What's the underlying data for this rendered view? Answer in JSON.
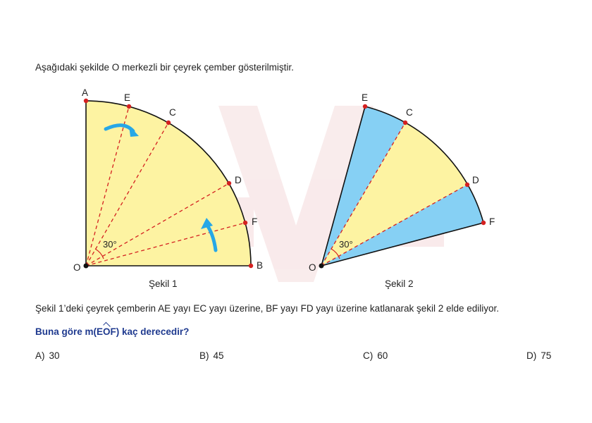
{
  "intro": "Aşağıdaki şekilde O merkezli bir çeyrek çember gösterilmiştir.",
  "figure1": {
    "caption": "Şekil 1",
    "labels": {
      "A": "A",
      "E": "E",
      "C": "C",
      "D": "D",
      "F": "F",
      "B": "B",
      "O": "O"
    },
    "angle_label": "30°"
  },
  "figure2": {
    "caption": "Şekil 2",
    "labels": {
      "E": "E",
      "C": "C",
      "D": "D",
      "F": "F",
      "O": "O"
    },
    "angle_label": "30°"
  },
  "description": "Şekil 1’deki çeyrek çemberin AE yayı EC yayı üzerine, BF yayı FD yayı üzerine katlanarak şekil 2 elde ediliyor.",
  "question": {
    "prefix": "Buna göre m(",
    "arc": "EOF",
    "suffix": ") kaç derecedir?"
  },
  "options": [
    {
      "letter": "A)",
      "value": "30"
    },
    {
      "letter": "B)",
      "value": "45"
    },
    {
      "letter": "C)",
      "value": "60"
    },
    {
      "letter": "D)",
      "value": "75"
    }
  ],
  "colors": {
    "sector_fill": "#fdf3a2",
    "folded_fill": "#86d0f4",
    "point": "#d42020",
    "dash": "#d42020",
    "arrow": "#27a7e6",
    "question": "#1f3a8f"
  }
}
